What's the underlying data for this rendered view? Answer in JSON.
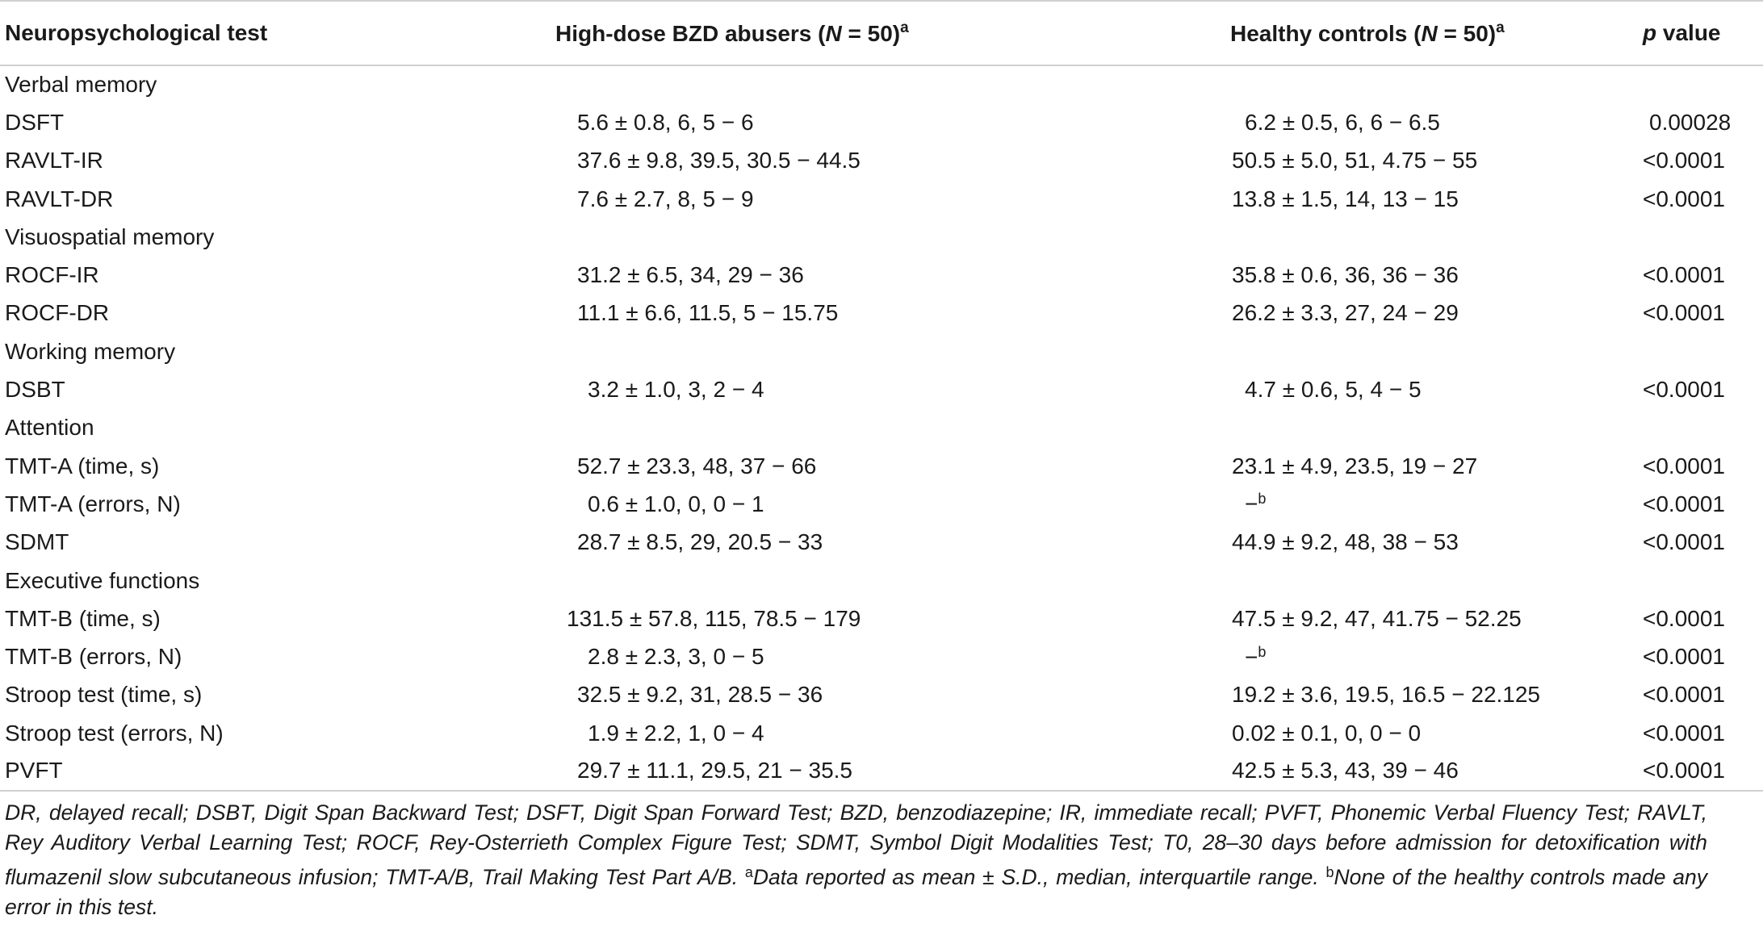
{
  "table": {
    "headers": {
      "test": "Neuropsychological test",
      "bzd_prefix": "High-dose BZD abusers (",
      "bzd_n": "N",
      "bzd_suffix": " = 50)",
      "controls_prefix": "Healthy controls (",
      "controls_n": "N",
      "controls_suffix": " = 50)",
      "sup_a": "a",
      "p_italic": "p",
      "p_suffix": " value"
    },
    "rows": [
      {
        "test": "Verbal memory",
        "bzd": "",
        "ctrl": "",
        "ctrl_sup": "",
        "p": ""
      },
      {
        "test": "DSFT",
        "bzd": "5.6 ± 0.8, 6, 5 − 6",
        "ctrl": "6.2 ± 0.5, 6, 6 − 6.5",
        "ctrl_sup": "",
        "p": "0.00028"
      },
      {
        "test": "RAVLT-IR",
        "bzd": "37.6 ± 9.8, 39.5, 30.5 − 44.5",
        "ctrl": "50.5 ± 5.0, 51, 4.75 − 55",
        "ctrl_sup": "",
        "p": "<0.0001"
      },
      {
        "test": "RAVLT-DR",
        "bzd": "7.6 ± 2.7, 8, 5 − 9",
        "ctrl": "13.8 ± 1.5, 14, 13 − 15",
        "ctrl_sup": "",
        "p": "<0.0001"
      },
      {
        "test": "Visuospatial memory",
        "bzd": "",
        "ctrl": "",
        "ctrl_sup": "",
        "p": ""
      },
      {
        "test": "ROCF-IR",
        "bzd": "31.2 ± 6.5, 34, 29 − 36",
        "ctrl": "35.8 ± 0.6, 36, 36 − 36",
        "ctrl_sup": "",
        "p": "<0.0001"
      },
      {
        "test": "ROCF-DR",
        "bzd": "11.1 ± 6.6, 11.5, 5 − 15.75",
        "ctrl": "26.2 ± 3.3, 27, 24 − 29",
        "ctrl_sup": "",
        "p": "<0.0001"
      },
      {
        "test": "Working memory",
        "bzd": "",
        "ctrl": "",
        "ctrl_sup": "",
        "p": ""
      },
      {
        "test": "DSBT",
        "bzd": "3.2 ± 1.0, 3, 2 − 4",
        "ctrl": "4.7 ± 0.6, 5, 4 − 5",
        "ctrl_sup": "",
        "p": "<0.0001"
      },
      {
        "test": "Attention",
        "bzd": "",
        "ctrl": "",
        "ctrl_sup": "",
        "p": ""
      },
      {
        "test": "TMT-A (time, s)",
        "bzd": "52.7 ± 23.3, 48, 37 − 66",
        "ctrl": "23.1 ± 4.9, 23.5, 19 − 27",
        "ctrl_sup": "",
        "p": "<0.0001"
      },
      {
        "test": "TMT-A (errors, N)",
        "bzd": "0.6 ± 1.0, 0, 0 − 1",
        "ctrl": "−",
        "ctrl_sup": "b",
        "p": "<0.0001"
      },
      {
        "test": "SDMT",
        "bzd": "28.7 ± 8.5, 29, 20.5 − 33",
        "ctrl": "44.9 ± 9.2, 48, 38 − 53",
        "ctrl_sup": "",
        "p": "<0.0001"
      },
      {
        "test": "Executive functions",
        "bzd": "",
        "ctrl": "",
        "ctrl_sup": "",
        "p": ""
      },
      {
        "test": "TMT-B (time, s)",
        "bzd": "131.5 ± 57.8, 115, 78.5 − 179",
        "ctrl": "47.5 ± 9.2, 47, 41.75 − 52.25",
        "ctrl_sup": "",
        "p": "<0.0001"
      },
      {
        "test": "TMT-B (errors, N)",
        "bzd": "2.8 ± 2.3, 3, 0 − 5",
        "ctrl": "−",
        "ctrl_sup": "b",
        "p": "<0.0001"
      },
      {
        "test": "Stroop test (time, s)",
        "bzd": "32.5 ± 9.2, 31, 28.5 − 36",
        "ctrl": "19.2 ± 3.6, 19.5, 16.5 − 22.125",
        "ctrl_sup": "",
        "p": "<0.0001"
      },
      {
        "test": "Stroop test (errors, N)",
        "bzd": "1.9 ± 2.2, 1, 0 − 4",
        "ctrl": "0.02 ± 0.1, 0, 0 − 0",
        "ctrl_sup": "",
        "p": "<0.0001"
      },
      {
        "test": "PVFT",
        "bzd": "29.7 ± 11.1, 29.5, 21 − 35.5",
        "ctrl": "42.5 ± 5.3, 43, 39 − 46",
        "ctrl_sup": "",
        "p": "<0.0001"
      }
    ]
  },
  "footnote": {
    "abbreviations": "DR, delayed recall; DSBT, Digit Span Backward Test; DSFT, Digit Span Forward Test; BZD, benzodiazepine; IR, immediate recall; PVFT, Phonemic Verbal Fluency Test; RAVLT, Rey Auditory Verbal Learning Test; ROCF, Rey-Osterrieth Complex Figure Test; SDMT, Symbol Digit Modalities Test; T0, 28–30 days before admission for detoxification with flumazenil slow subcutaneous infusion; TMT-A/B, Trail Making Test Part A/B. ",
    "sup_a": "a",
    "note_a": "Data reported as mean ± S.D., median, interquartile range. ",
    "sup_b": "b",
    "note_b": "None of the healthy controls made any error in this test."
  }
}
